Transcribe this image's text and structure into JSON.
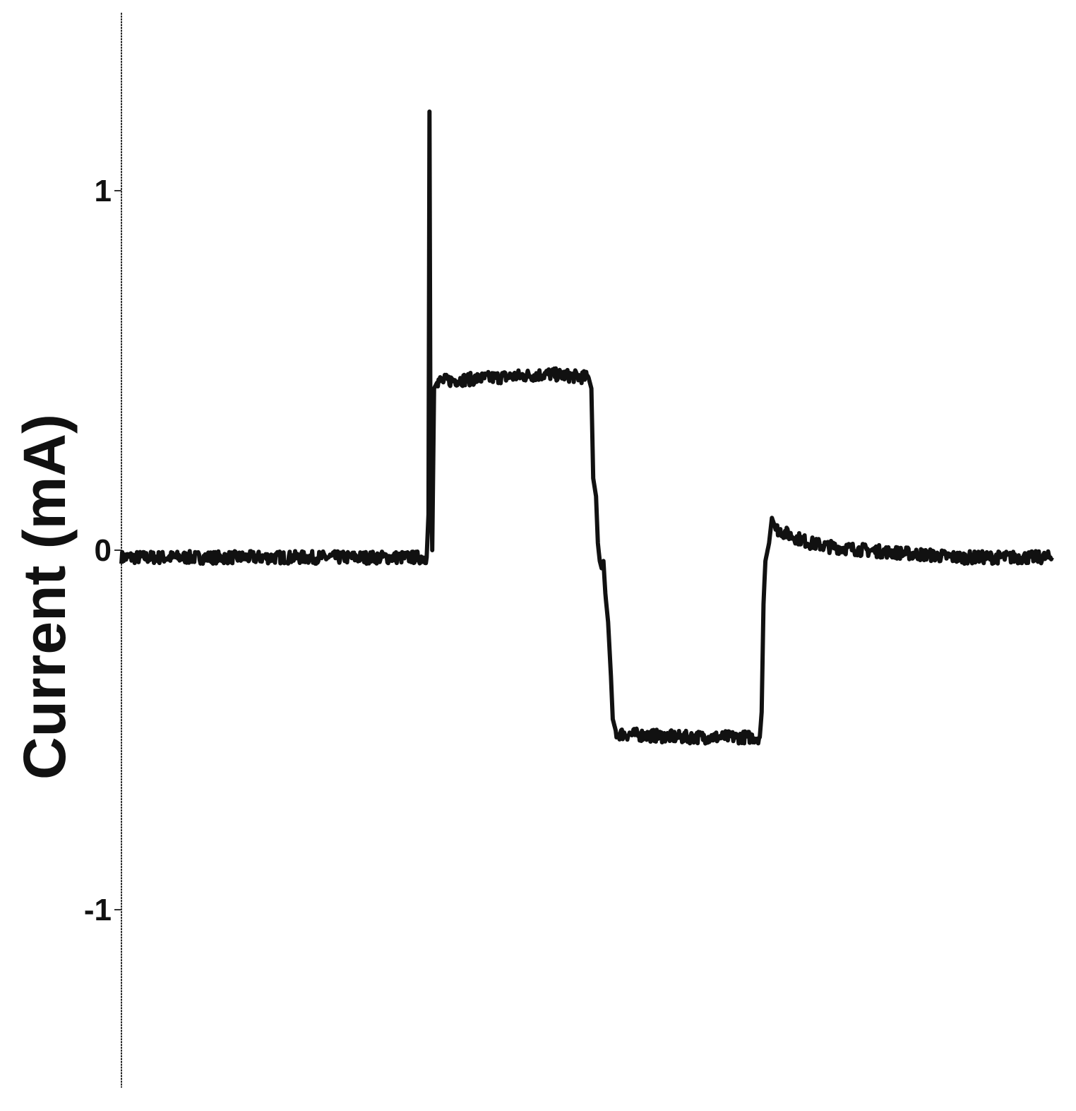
{
  "chart_data": {
    "type": "line",
    "title": "",
    "xlabel": "",
    "ylabel": "Current (mA)",
    "ylim": [
      -1.45,
      1.5
    ],
    "xlim": [
      0,
      1000
    ],
    "grid": false,
    "y_ticks": [
      {
        "value": 1,
        "label": "1"
      },
      {
        "value": 0,
        "label": "0"
      },
      {
        "value": -1,
        "label": "-1"
      }
    ],
    "series": [
      {
        "color": "#111111",
        "points": [
          [
            0,
            -0.02
          ],
          [
            60,
            -0.02
          ],
          [
            120,
            -0.02
          ],
          [
            180,
            -0.02
          ],
          [
            240,
            -0.02
          ],
          [
            300,
            -0.02
          ],
          [
            328,
            -0.02
          ],
          [
            330,
            0.1
          ],
          [
            331,
            1.22
          ],
          [
            332,
            0.35
          ],
          [
            334,
            0.0
          ],
          [
            336,
            0.45
          ],
          [
            340,
            0.47
          ],
          [
            400,
            0.48
          ],
          [
            460,
            0.49
          ],
          [
            502,
            0.48
          ],
          [
            505,
            0.45
          ],
          [
            507,
            0.2
          ],
          [
            510,
            0.15
          ],
          [
            512,
            0.02
          ],
          [
            514,
            -0.03
          ],
          [
            516,
            -0.05
          ],
          [
            518,
            -0.03
          ],
          [
            520,
            -0.12
          ],
          [
            523,
            -0.2
          ],
          [
            526,
            -0.35
          ],
          [
            528,
            -0.47
          ],
          [
            532,
            -0.51
          ],
          [
            600,
            -0.52
          ],
          [
            660,
            -0.52
          ],
          [
            686,
            -0.52
          ],
          [
            688,
            -0.45
          ],
          [
            690,
            -0.15
          ],
          [
            692,
            -0.03
          ],
          [
            696,
            0.02
          ],
          [
            699,
            0.09
          ],
          [
            703,
            0.06
          ],
          [
            720,
            0.04
          ],
          [
            740,
            0.02
          ],
          [
            760,
            0.01
          ],
          [
            800,
            0.0
          ],
          [
            850,
            -0.01
          ],
          [
            900,
            -0.02
          ],
          [
            950,
            -0.02
          ],
          [
            1000,
            -0.02
          ]
        ]
      }
    ]
  }
}
